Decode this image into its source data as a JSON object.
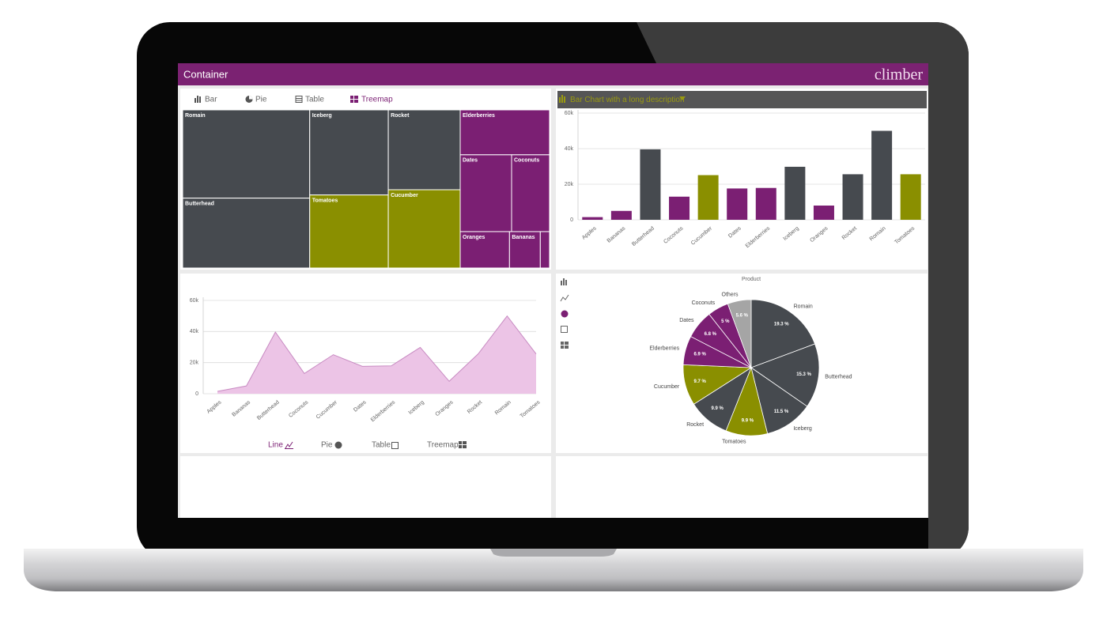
{
  "header": {
    "title": "Container",
    "logo": "climber"
  },
  "tabs": {
    "top": [
      "Bar",
      "Pie",
      "Table",
      "Treemap"
    ],
    "bottom": [
      "Line",
      "Pie",
      "Table",
      "Treemap"
    ]
  },
  "chart_data": [
    {
      "type": "treemap",
      "categories": [
        "Romain",
        "Butterhead",
        "Iceberg",
        "Tomatoes",
        "Rocket",
        "Cucumber",
        "Elderberries",
        "Dates",
        "Coconuts",
        "Oranges",
        "Bananas",
        null
      ],
      "values": [
        50000,
        39600,
        29800,
        25600,
        25600,
        25100,
        17900,
        17600,
        13000,
        8000,
        5000,
        1500
      ],
      "colors": [
        "#464a4f",
        "#464a4f",
        "#464a4f",
        "#8a8f00",
        "#464a4f",
        "#8a8f00",
        "#7b1f73",
        "#7b1f73",
        "#7b1f73",
        "#7b1f73",
        "#7b1f73",
        "#7b1f73"
      ]
    },
    {
      "type": "bar",
      "title": "Bar Chart with a long description",
      "categories": [
        "Apples",
        "Bananas",
        "Butterhead",
        "Coconuts",
        "Cucumber",
        "Dates",
        "Elderberries",
        "Iceberg",
        "Oranges",
        "Rocket",
        "Romain",
        "Tomatoes"
      ],
      "values": [
        1500,
        5000,
        39600,
        13000,
        25100,
        17600,
        17900,
        29800,
        8000,
        25600,
        50000,
        25600
      ],
      "colors": [
        "#7b1f73",
        "#7b1f73",
        "#464a4f",
        "#7b1f73",
        "#8a8f00",
        "#7b1f73",
        "#7b1f73",
        "#464a4f",
        "#7b1f73",
        "#464a4f",
        "#464a4f",
        "#8a8f00"
      ],
      "ylim": [
        0,
        60000
      ],
      "yticks": [
        0,
        {
          "value": 20000,
          "label": "20k"
        },
        {
          "value": 40000,
          "label": "40k"
        },
        {
          "value": 60000,
          "label": "60k"
        }
      ],
      "grid": true
    },
    {
      "type": "area",
      "categories": [
        "Apples",
        "Bananas",
        "Butterhead",
        "Coconuts",
        "Cucumber",
        "Dates",
        "Elderberries",
        "Iceberg",
        "Oranges",
        "Rocket",
        "Romain",
        "Tomatoes"
      ],
      "values": [
        1500,
        5000,
        39600,
        13000,
        25100,
        17600,
        17900,
        29800,
        8000,
        25600,
        50000,
        25600
      ],
      "color": "#ecc4e6",
      "line_color": "#c88bc2",
      "ylim": [
        0,
        60000
      ],
      "yticks": [
        0,
        {
          "value": 20000,
          "label": "20k"
        },
        {
          "value": 40000,
          "label": "40k"
        },
        {
          "value": 60000,
          "label": "60k"
        }
      ],
      "grid": true
    },
    {
      "type": "pie",
      "title": "Product",
      "categories": [
        "Romain",
        "Butterhead",
        "Iceberg",
        "Tomatoes",
        "Rocket",
        "Cucumber",
        "Elderberries",
        "Dates",
        "Coconuts",
        "Others"
      ],
      "values": [
        19.3,
        15.3,
        11.5,
        9.9,
        9.9,
        9.7,
        6.9,
        6.8,
        5,
        5.6
      ],
      "value_labels": [
        "19.3 %",
        "15.3 %",
        "11.5 %",
        "9.9 %",
        "9.9 %",
        "9.7 %",
        "6.9 %",
        "6.8 %",
        "5 %",
        "5.6 %"
      ],
      "colors": [
        "#464a4f",
        "#464a4f",
        "#464a4f",
        "#8a8f00",
        "#464a4f",
        "#8a8f00",
        "#7b1f73",
        "#7b1f73",
        "#7b1f73",
        "#a5a5a5"
      ]
    }
  ]
}
